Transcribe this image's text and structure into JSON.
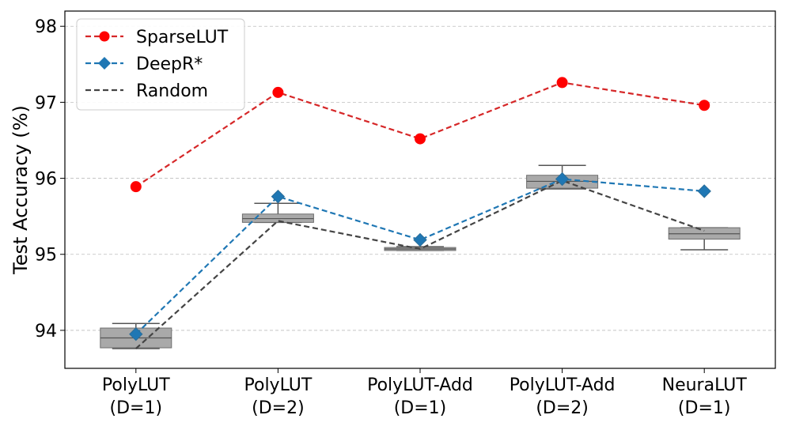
{
  "chart_data": {
    "type": "line",
    "title": "",
    "xlabel": "",
    "ylabel": "Test Accuracy (%)",
    "categories": [
      {
        "line1": "PolyLUT",
        "line2": "(D=1)"
      },
      {
        "line1": "PolyLUT",
        "line2": "(D=2)"
      },
      {
        "line1": "PolyLUT-Add",
        "line2": "(D=1)"
      },
      {
        "line1": "PolyLUT-Add",
        "line2": "(D=2)"
      },
      {
        "line1": "NeuraLUT",
        "line2": "(D=1)"
      }
    ],
    "ylim": [
      93.5,
      98.2
    ],
    "yticks": [
      94,
      95,
      96,
      97,
      98
    ],
    "grid": "y-dashed",
    "legend_position": "top-left",
    "series": [
      {
        "name": "SparseLUT",
        "color": "#d62728",
        "marker": "circle",
        "values": [
          95.89,
          97.13,
          96.52,
          97.26,
          96.96
        ]
      },
      {
        "name": "DeepR*",
        "color": "#1f77b4",
        "marker": "diamond",
        "values": [
          93.95,
          95.76,
          95.19,
          95.99,
          95.83
        ]
      },
      {
        "name": "Random",
        "color": "#444444",
        "marker": "none",
        "values": [
          93.76,
          95.44,
          95.07,
          95.97,
          95.31
        ]
      }
    ],
    "boxplots": [
      {
        "q1": 93.77,
        "median": 93.9,
        "q3": 94.03,
        "whisker_low": 93.76,
        "whisker_high": 94.09
      },
      {
        "q1": 95.42,
        "median": 95.47,
        "q3": 95.53,
        "whisker_low": 95.42,
        "whisker_high": 95.67
      },
      {
        "q1": 95.05,
        "median": 95.07,
        "q3": 95.09,
        "whisker_low": 95.05,
        "whisker_high": 95.1
      },
      {
        "q1": 95.87,
        "median": 95.96,
        "q3": 96.04,
        "whisker_low": 95.86,
        "whisker_high": 96.17
      },
      {
        "q1": 95.2,
        "median": 95.27,
        "q3": 95.35,
        "whisker_low": 95.06,
        "whisker_high": 95.35
      }
    ]
  }
}
